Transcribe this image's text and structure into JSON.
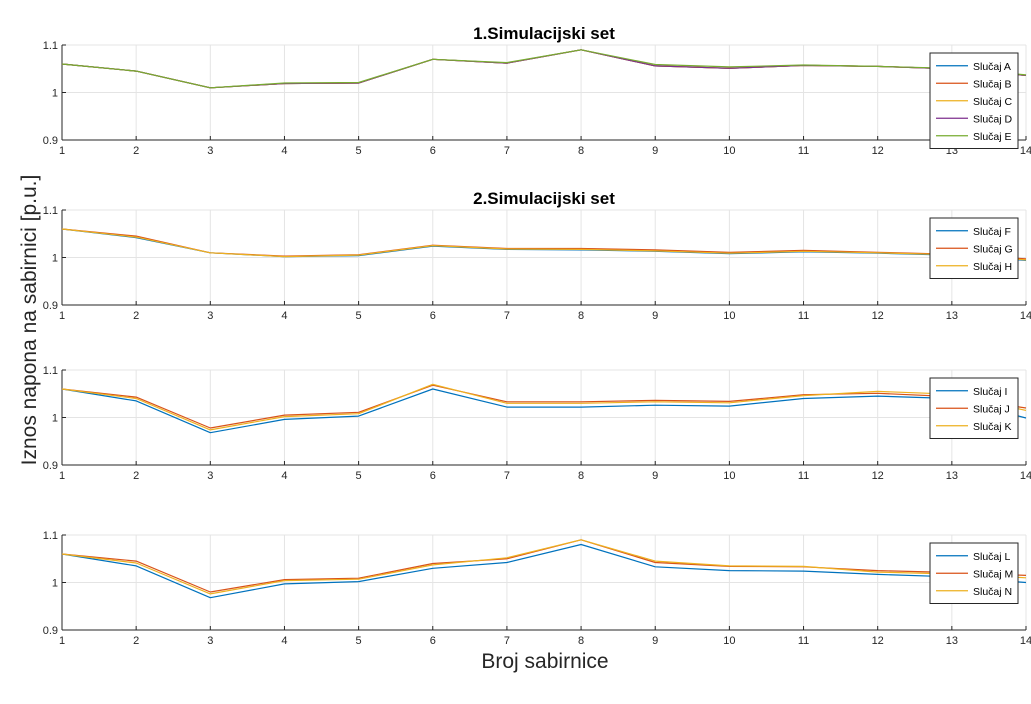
{
  "figure": {
    "xlabel": "Broj sabirnice",
    "ylabel": "Iznos napona na sabirnici [p.u.]"
  },
  "chart_data": [
    {
      "type": "line",
      "title": "1.Simulacijski set",
      "x": [
        1,
        2,
        3,
        4,
        5,
        6,
        7,
        8,
        9,
        10,
        11,
        12,
        13,
        14
      ],
      "ylim": [
        0.9,
        1.1
      ],
      "yticks": [
        0.9,
        1,
        1.1
      ],
      "ytick_labels": [
        "0.9",
        "1",
        "1.1"
      ],
      "xticks": [
        1,
        2,
        3,
        4,
        5,
        6,
        7,
        8,
        9,
        10,
        11,
        12,
        13,
        14
      ],
      "xtick_labels": [
        "1",
        "2",
        "3",
        "4",
        "5",
        "6",
        "7",
        "8",
        "9",
        "10",
        "11",
        "12",
        "13",
        "14"
      ],
      "grid": true,
      "legend_position": "top-right",
      "series": [
        {
          "name": "Slučaj A",
          "color": "#0072BD",
          "values": [
            1.06,
            1.045,
            1.01,
            1.019,
            1.02,
            1.07,
            1.062,
            1.09,
            1.056,
            1.051,
            1.057,
            1.055,
            1.05,
            1.036
          ]
        },
        {
          "name": "Slučaj B",
          "color": "#D95319",
          "values": [
            1.06,
            1.045,
            1.01,
            1.019,
            1.02,
            1.07,
            1.062,
            1.09,
            1.056,
            1.051,
            1.057,
            1.055,
            1.05,
            1.036
          ]
        },
        {
          "name": "Slučaj C",
          "color": "#EDB120",
          "values": [
            1.06,
            1.045,
            1.01,
            1.019,
            1.02,
            1.07,
            1.062,
            1.09,
            1.056,
            1.051,
            1.057,
            1.055,
            1.05,
            1.036
          ]
        },
        {
          "name": "Slučaj D",
          "color": "#7E2F8E",
          "values": [
            1.06,
            1.045,
            1.01,
            1.019,
            1.02,
            1.07,
            1.062,
            1.09,
            1.056,
            1.051,
            1.057,
            1.055,
            1.05,
            1.036
          ]
        },
        {
          "name": "Slučaj E",
          "color": "#77AC30",
          "values": [
            1.06,
            1.045,
            1.01,
            1.02,
            1.021,
            1.07,
            1.063,
            1.09,
            1.059,
            1.054,
            1.058,
            1.055,
            1.051,
            1.037
          ]
        }
      ]
    },
    {
      "type": "line",
      "title": "2.Simulacijski set",
      "x": [
        1,
        2,
        3,
        4,
        5,
        6,
        7,
        8,
        9,
        10,
        11,
        12,
        13,
        14
      ],
      "ylim": [
        0.9,
        1.1
      ],
      "yticks": [
        0.9,
        1,
        1.1
      ],
      "ytick_labels": [
        "0.9",
        "1",
        "1.1"
      ],
      "xticks": [
        1,
        2,
        3,
        4,
        5,
        6,
        7,
        8,
        9,
        10,
        11,
        12,
        13,
        14
      ],
      "xtick_labels": [
        "1",
        "2",
        "3",
        "4",
        "5",
        "6",
        "7",
        "8",
        "9",
        "10",
        "11",
        "12",
        "13",
        "14"
      ],
      "grid": true,
      "legend_position": "top-right",
      "series": [
        {
          "name": "Slučaj F",
          "color": "#0072BD",
          "values": [
            1.06,
            1.042,
            1.01,
            1.002,
            1.004,
            1.024,
            1.017,
            1.016,
            1.013,
            1.008,
            1.012,
            1.009,
            1.005,
            0.994
          ]
        },
        {
          "name": "Slučaj G",
          "color": "#D95319",
          "values": [
            1.06,
            1.045,
            1.01,
            1.003,
            1.006,
            1.026,
            1.019,
            1.019,
            1.016,
            1.011,
            1.015,
            1.011,
            1.007,
            0.997
          ]
        },
        {
          "name": "Slučaj H",
          "color": "#EDB120",
          "values": [
            1.06,
            1.043,
            1.01,
            1.002,
            1.005,
            1.025,
            1.018,
            1.017,
            1.014,
            1.009,
            1.013,
            1.01,
            1.006,
            0.995
          ]
        }
      ]
    },
    {
      "type": "line",
      "title": "",
      "x": [
        1,
        2,
        3,
        4,
        5,
        6,
        7,
        8,
        9,
        10,
        11,
        12,
        13,
        14
      ],
      "ylim": [
        0.9,
        1.1
      ],
      "yticks": [
        0.9,
        1,
        1.1
      ],
      "ytick_labels": [
        "0.9",
        "1",
        "1.1"
      ],
      "xticks": [
        1,
        2,
        3,
        4,
        5,
        6,
        7,
        8,
        9,
        10,
        11,
        12,
        13,
        14
      ],
      "xtick_labels": [
        "1",
        "2",
        "3",
        "4",
        "5",
        "6",
        "7",
        "8",
        "9",
        "10",
        "11",
        "12",
        "13",
        "14"
      ],
      "grid": true,
      "legend_position": "top-right",
      "series": [
        {
          "name": "Slučaj I",
          "color": "#0072BD",
          "values": [
            1.06,
            1.035,
            0.968,
            0.996,
            1.003,
            1.06,
            1.022,
            1.022,
            1.026,
            1.024,
            1.04,
            1.045,
            1.04,
            0.999
          ]
        },
        {
          "name": "Slučaj J",
          "color": "#D95319",
          "values": [
            1.06,
            1.043,
            0.978,
            1.005,
            1.011,
            1.068,
            1.033,
            1.033,
            1.036,
            1.034,
            1.048,
            1.051,
            1.044,
            1.02
          ]
        },
        {
          "name": "Slučaj K",
          "color": "#EDB120",
          "values": [
            1.06,
            1.04,
            0.974,
            1.002,
            1.008,
            1.07,
            1.03,
            1.03,
            1.033,
            1.031,
            1.046,
            1.055,
            1.049,
            1.015
          ]
        }
      ]
    },
    {
      "type": "line",
      "title": "",
      "x": [
        1,
        2,
        3,
        4,
        5,
        6,
        7,
        8,
        9,
        10,
        11,
        12,
        13,
        14
      ],
      "ylim": [
        0.9,
        1.1
      ],
      "yticks": [
        0.9,
        1,
        1.1
      ],
      "ytick_labels": [
        "0.9",
        "1",
        "1.1"
      ],
      "xticks": [
        1,
        2,
        3,
        4,
        5,
        6,
        7,
        8,
        9,
        10,
        11,
        12,
        13,
        14
      ],
      "xtick_labels": [
        "1",
        "2",
        "3",
        "4",
        "5",
        "6",
        "7",
        "8",
        "9",
        "10",
        "11",
        "12",
        "13",
        "14"
      ],
      "grid": true,
      "legend_position": "top-right",
      "series": [
        {
          "name": "Slučaj L",
          "color": "#0072BD",
          "values": [
            1.06,
            1.035,
            0.968,
            0.997,
            1.002,
            1.03,
            1.042,
            1.08,
            1.033,
            1.025,
            1.024,
            1.017,
            1.012,
            1.0
          ]
        },
        {
          "name": "Slučaj M",
          "color": "#D95319",
          "values": [
            1.06,
            1.045,
            0.98,
            1.006,
            1.009,
            1.04,
            1.05,
            1.09,
            1.042,
            1.034,
            1.033,
            1.025,
            1.021,
            1.015
          ]
        },
        {
          "name": "Slučaj N",
          "color": "#EDB120",
          "values": [
            1.06,
            1.041,
            0.976,
            1.004,
            1.007,
            1.037,
            1.052,
            1.09,
            1.045,
            1.035,
            1.034,
            1.022,
            1.018,
            1.01
          ]
        }
      ]
    }
  ]
}
